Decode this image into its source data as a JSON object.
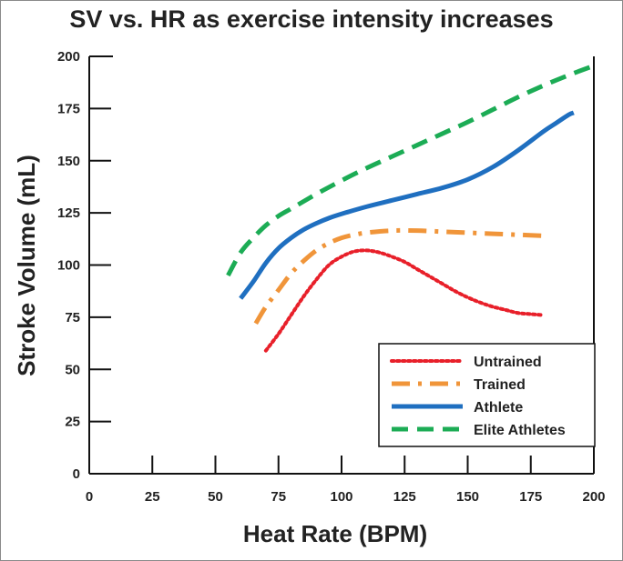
{
  "chart_data": {
    "type": "line",
    "title": "SV vs. HR as exercise intensity increases",
    "xlabel": "Heat Rate (BPM)",
    "ylabel": "Stroke Volume (mL)",
    "xlim": [
      0,
      200
    ],
    "ylim": [
      0,
      200
    ],
    "xticks": [
      0,
      25,
      50,
      75,
      100,
      125,
      150,
      175,
      200
    ],
    "yticks": [
      0,
      25,
      50,
      75,
      100,
      125,
      150,
      175,
      200
    ],
    "grid": false,
    "legend_position": "bottom-right",
    "series": [
      {
        "name": "Untrained",
        "color": "#e8202a",
        "style": "dotted",
        "x": [
          70,
          75,
          80,
          85,
          90,
          95,
          100,
          105,
          110,
          115,
          120,
          125,
          130,
          135,
          140,
          145,
          150,
          155,
          160,
          165,
          170,
          175,
          180
        ],
        "y": [
          59,
          67,
          76,
          85,
          93,
          100,
          104,
          106.5,
          107,
          106,
          104,
          101.5,
          98,
          94.5,
          91,
          87.5,
          84.5,
          82,
          80,
          78.5,
          77,
          76.5,
          76
        ]
      },
      {
        "name": "Trained",
        "color": "#f0953a",
        "style": "dash-dot",
        "x": [
          66,
          70,
          75,
          80,
          85,
          90,
          95,
          100,
          105,
          110,
          120,
          130,
          140,
          150,
          160,
          170,
          180
        ],
        "y": [
          72,
          80,
          88,
          96,
          102,
          107,
          110.5,
          113,
          114.5,
          115.5,
          116.5,
          116.5,
          116,
          115.5,
          115,
          114.5,
          114
        ]
      },
      {
        "name": "Athlete",
        "color": "#1f6fc0",
        "style": "solid",
        "x": [
          60,
          65,
          70,
          75,
          80,
          85,
          90,
          95,
          100,
          110,
          120,
          130,
          140,
          150,
          160,
          170,
          180,
          185,
          190,
          192
        ],
        "y": [
          84,
          92,
          101,
          108,
          113,
          117,
          120,
          122.5,
          124.5,
          128,
          131,
          134,
          137,
          141,
          147,
          155,
          164,
          168,
          172,
          173
        ]
      },
      {
        "name": "Elite Athletes",
        "color": "#1cac55",
        "style": "dashed",
        "x": [
          55,
          60,
          65,
          70,
          75,
          80,
          90,
          100,
          110,
          120,
          130,
          140,
          150,
          160,
          170,
          180,
          190,
          200
        ],
        "y": [
          95,
          106,
          113,
          119,
          123.5,
          127,
          134,
          140.5,
          146.5,
          152,
          157.5,
          163,
          168.5,
          174.5,
          180.5,
          186,
          191,
          195.5
        ]
      }
    ]
  }
}
